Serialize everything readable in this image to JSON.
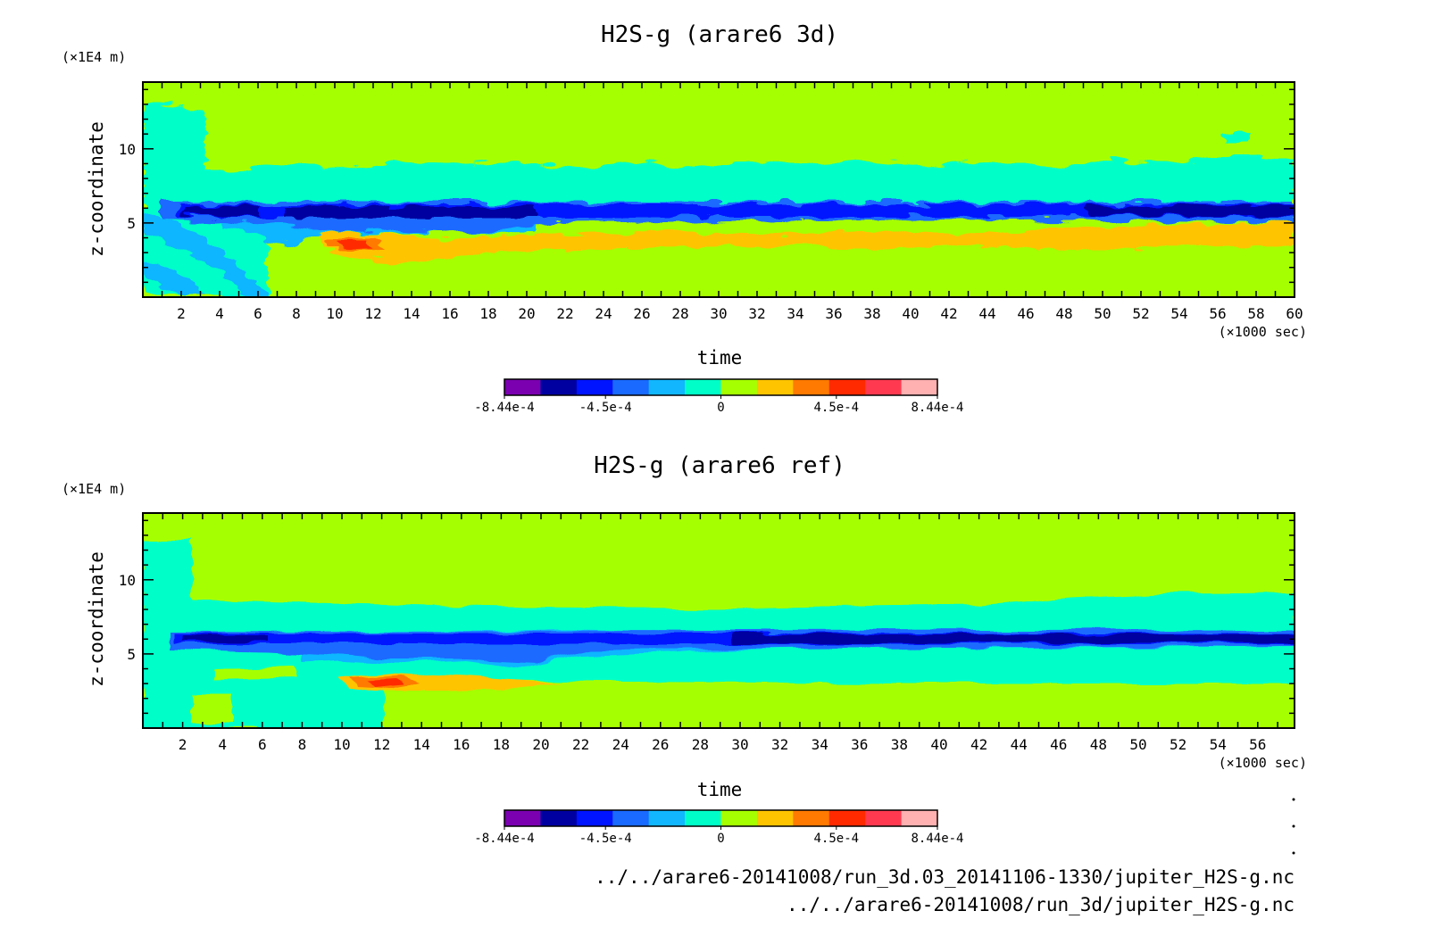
{
  "chart_data": [
    {
      "type": "heatmap",
      "title": "H2S-g (arare6 3d)",
      "xlabel": "time",
      "xunit": "(×1000 sec)",
      "ylabel": "z-coordinate",
      "yunit": "(×1E4 m)",
      "xlim": [
        0,
        60
      ],
      "ylim": [
        0,
        14.5
      ],
      "xticks": [
        2,
        4,
        6,
        8,
        10,
        12,
        14,
        16,
        18,
        20,
        22,
        24,
        26,
        28,
        30,
        32,
        34,
        36,
        38,
        40,
        42,
        44,
        46,
        48,
        50,
        52,
        54,
        56,
        58,
        60
      ],
      "yticks": [
        5,
        10
      ],
      "grid": false,
      "colorbar": {
        "levels": [
          -0.000844,
          -0.0007,
          -0.00058,
          -0.00045,
          -0.0003,
          -0.00015,
          0,
          0.00015,
          0.0003,
          0.00045,
          0.00058,
          0.0007,
          0.000844
        ],
        "tick_labels": [
          "-8.44e-4",
          "-4.5e-4",
          "0",
          "4.5e-4",
          "8.44e-4"
        ],
        "colors": [
          "#7b00b0",
          "#0000a0",
          "#0014ff",
          "#1a6aff",
          "#11b6ff",
          "#00ffc8",
          "#a6ff00",
          "#ffc400",
          "#ff7a00",
          "#ff2a00",
          "#ff3a50",
          "#ffb0b0"
        ]
      },
      "features": [
        {
          "region": "background",
          "value": 5e-05
        },
        {
          "region": "upper turquoise layer",
          "z_range": [
            6.8,
            9.2
          ],
          "x_range": [
            0,
            60
          ],
          "value": -7e-05
        },
        {
          "region": "dark blue band",
          "z_range": [
            5.8,
            6.6
          ],
          "x_range": [
            2,
            60
          ],
          "value": -0.00075
        },
        {
          "region": "orange layer",
          "z_range": [
            3.2,
            4.8
          ],
          "x_range": [
            9,
            60
          ],
          "value": 0.00035
        },
        {
          "region": "red core",
          "z_center": 3.8,
          "x_center": 11,
          "value": 0.00055
        }
      ]
    },
    {
      "type": "heatmap",
      "title": "H2S-g (arare6 ref)",
      "xlabel": "time",
      "xunit": "(×1000 sec)",
      "ylabel": "z-coordinate",
      "yunit": "(×1E4 m)",
      "xlim": [
        0,
        58
      ],
      "ylim": [
        0,
        14.5
      ],
      "xticks": [
        2,
        4,
        6,
        8,
        10,
        12,
        14,
        16,
        18,
        20,
        22,
        24,
        26,
        28,
        30,
        32,
        34,
        36,
        38,
        40,
        42,
        44,
        46,
        48,
        50,
        52,
        54,
        56
      ],
      "yticks": [
        5,
        10
      ],
      "grid": false,
      "colorbar": {
        "levels": [
          -0.000844,
          -0.0007,
          -0.00058,
          -0.00045,
          -0.0003,
          -0.00015,
          0,
          0.00015,
          0.0003,
          0.00045,
          0.00058,
          0.0007,
          0.000844
        ],
        "tick_labels": [
          "-8.44e-4",
          "-4.5e-4",
          "0",
          "4.5e-4",
          "8.44e-4"
        ],
        "colors": [
          "#7b00b0",
          "#0000a0",
          "#0014ff",
          "#1a6aff",
          "#11b6ff",
          "#00ffc8",
          "#a6ff00",
          "#ffc400",
          "#ff7a00",
          "#ff2a00",
          "#ff3a50",
          "#ffb0b0"
        ]
      },
      "features": [
        {
          "region": "background",
          "value": 5e-05
        },
        {
          "region": "turquoise layer",
          "z_range": [
            3.0,
            8.5
          ],
          "x_range": [
            0,
            58
          ],
          "value": -7e-05
        },
        {
          "region": "dark blue band",
          "z_range": [
            5.7,
            6.5
          ],
          "x_range": [
            2,
            58
          ],
          "value": -0.00075
        },
        {
          "region": "orange layer",
          "z_range": [
            2.8,
            4.3
          ],
          "x_range": [
            9,
            21
          ],
          "value": 0.00035
        },
        {
          "region": "red core",
          "z_center": 3.6,
          "x_center": 12,
          "value": 0.00055
        }
      ]
    }
  ],
  "files": [
    "../../arare6-20141008/run_3d.03_20141106-1330/jupiter_H2S-g.nc",
    "../../arare6-20141008/run_3d/jupiter_H2S-g.nc"
  ]
}
